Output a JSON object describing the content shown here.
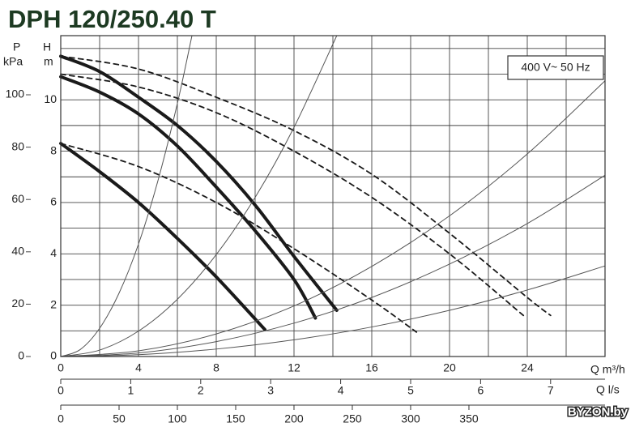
{
  "chart_data": {
    "type": "line",
    "title": "DPH 120/250.40 T",
    "annotation": "400 V~ 50 Hz",
    "watermark": "BYZON.by",
    "ylabel": "H",
    "yunit": "m",
    "y2label": "P",
    "y2unit": "kPa",
    "xlabel": "Q m³/h",
    "x2label": "Q l/s",
    "xlim": [
      0,
      28
    ],
    "xticks": [
      0,
      4,
      8,
      12,
      16,
      20,
      24
    ],
    "x2lim": [
      0,
      7.778
    ],
    "x2ticks": [
      0,
      1,
      2,
      3,
      4,
      5,
      6,
      7
    ],
    "x3lim": [
      0,
      466.7
    ],
    "x3ticks": [
      0,
      50,
      100,
      150,
      200,
      250,
      300,
      350
    ],
    "ylim": [
      0,
      12.5
    ],
    "yticks": [
      0,
      2,
      4,
      6,
      8,
      10
    ],
    "y2lim": [
      0,
      122.6
    ],
    "y2ticks": [
      0,
      20,
      40,
      60,
      80,
      100
    ],
    "xgrid": [
      0,
      2,
      4,
      6,
      8,
      10,
      12,
      14,
      16,
      18,
      20,
      22,
      24,
      26,
      28
    ],
    "ygrid": [
      0,
      1,
      2,
      3,
      4,
      5,
      6,
      7,
      8,
      9,
      10,
      11,
      12,
      12.5
    ],
    "series": [
      {
        "style": "thick",
        "color": "#1a1a1a",
        "x": [
          0,
          2,
          4,
          6,
          8,
          10,
          12,
          14.2
        ],
        "values": [
          11.7,
          11.1,
          10.1,
          9.0,
          7.6,
          5.9,
          3.9,
          1.8
        ]
      },
      {
        "style": "thick",
        "color": "#1a1a1a",
        "x": [
          0,
          2,
          4,
          6,
          8,
          10,
          12,
          13.1
        ],
        "values": [
          10.9,
          10.3,
          9.45,
          8.2,
          6.6,
          4.9,
          3.0,
          1.5
        ]
      },
      {
        "style": "thick",
        "color": "#1a1a1a",
        "x": [
          0,
          2,
          4,
          6,
          8,
          10.5
        ],
        "values": [
          8.3,
          7.2,
          6.0,
          4.6,
          3.1,
          1.05
        ]
      },
      {
        "style": "dashed",
        "color": "#1a1a1a",
        "x": [
          0,
          4,
          8,
          12,
          16,
          20,
          24,
          25.2
        ],
        "values": [
          11.7,
          11.2,
          10.1,
          8.8,
          7.1,
          4.8,
          2.3,
          1.6
        ]
      },
      {
        "style": "dashed",
        "color": "#1a1a1a",
        "x": [
          0,
          4,
          8,
          12,
          16,
          20,
          23.8
        ],
        "values": [
          11.0,
          10.5,
          9.5,
          8.0,
          6.2,
          4.0,
          1.6
        ]
      },
      {
        "style": "dashed",
        "color": "#1a1a1a",
        "x": [
          0,
          4,
          8,
          12,
          16,
          18.3
        ],
        "values": [
          8.3,
          7.4,
          6.0,
          4.2,
          2.2,
          0.95
        ]
      },
      {
        "style": "thin",
        "color": "#555555",
        "x": [
          0,
          1,
          2,
          3,
          4,
          5,
          6,
          6.75
        ],
        "values": [
          0,
          0.27,
          1.1,
          2.47,
          4.38,
          6.85,
          9.86,
          12.5
        ]
      },
      {
        "style": "thin",
        "color": "#555555",
        "x": [
          0,
          2,
          4,
          6,
          8,
          10,
          12,
          14.2
        ],
        "values": [
          0,
          0.25,
          0.99,
          2.23,
          3.97,
          6.2,
          8.93,
          12.5
        ]
      },
      {
        "style": "thin",
        "color": "#555555",
        "x": [
          0,
          4,
          8,
          12,
          16,
          20,
          24,
          28
        ],
        "values": [
          0,
          0.22,
          0.88,
          1.97,
          3.51,
          5.48,
          7.89,
          10.74
        ]
      },
      {
        "style": "thin",
        "color": "#555555",
        "x": [
          0,
          4,
          8,
          12,
          16,
          20,
          24,
          28
        ],
        "values": [
          0,
          0.14,
          0.58,
          1.3,
          2.3,
          3.6,
          5.18,
          7.06
        ]
      },
      {
        "style": "thin",
        "color": "#555555",
        "x": [
          0,
          4,
          8,
          12,
          16,
          20,
          24,
          28
        ],
        "values": [
          0,
          0.07,
          0.29,
          0.65,
          1.15,
          1.8,
          2.59,
          3.53
        ]
      }
    ]
  }
}
